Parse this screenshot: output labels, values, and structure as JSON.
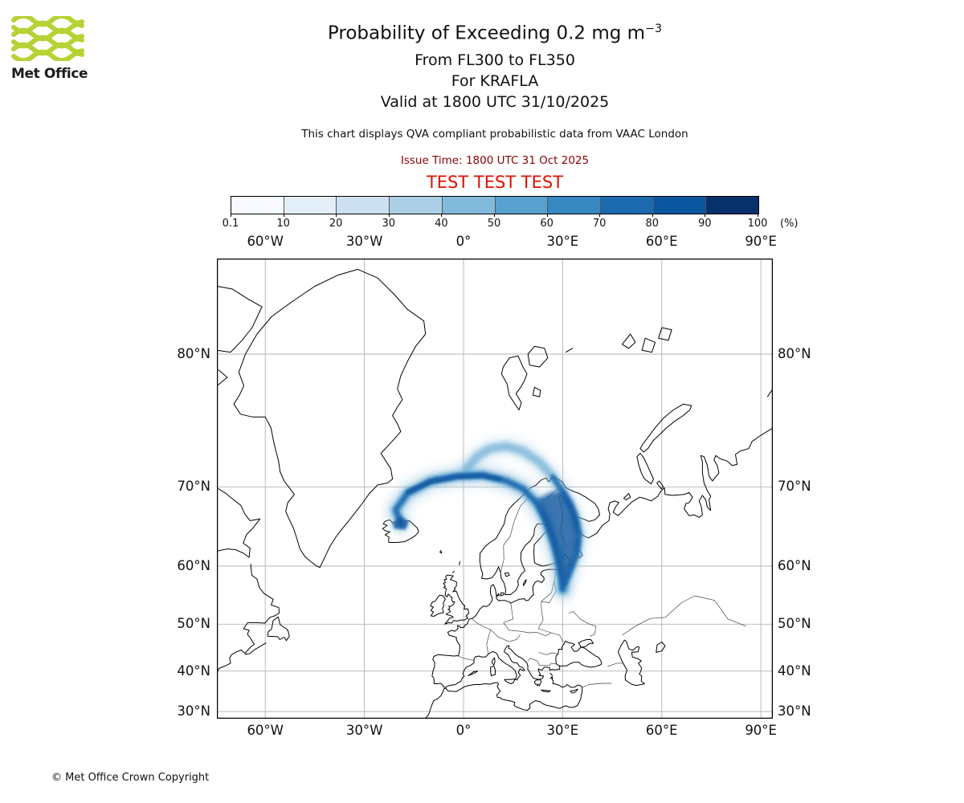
{
  "header": {
    "logo_text": "Met Office",
    "logo_green": "#b5d334",
    "title_main": "Probability of Exceeding 0.2 mg m",
    "title_sup": "−3",
    "subtitle_fl": "From FL300 to FL350",
    "subtitle_volcano": "For KRAFLA",
    "subtitle_valid": "Valid at 1800 UTC 31/10/2025",
    "description": "This chart displays QVA compliant probabilistic data from VAAC London",
    "issue_time": "Issue Time: 1800 UTC 31 Oct 2025",
    "issue_color": "#8b0000",
    "test_banner": "TEST TEST TEST",
    "test_color": "#dd1100"
  },
  "colorbar": {
    "tick_labels": [
      "0.1",
      "10",
      "20",
      "30",
      "40",
      "50",
      "60",
      "70",
      "80",
      "90",
      "100"
    ],
    "unit": "(%)",
    "colors": [
      "#f7fbff",
      "#e2eef8",
      "#cde0f1",
      "#abd0e6",
      "#82badb",
      "#58a1cf",
      "#3787c0",
      "#1b69af",
      "#0b559f",
      "#08306b"
    ]
  },
  "map": {
    "lon_ticks": [
      {
        "deg": -60,
        "label": "60°W"
      },
      {
        "deg": -30,
        "label": "30°W"
      },
      {
        "deg": 0,
        "label": "0°"
      },
      {
        "deg": 30,
        "label": "30°E"
      },
      {
        "deg": 60,
        "label": "60°E"
      },
      {
        "deg": 90,
        "label": "90°E"
      }
    ],
    "lat_ticks": [
      {
        "deg": 80,
        "label": "80°N"
      },
      {
        "deg": 70,
        "label": "70°N"
      },
      {
        "deg": 60,
        "label": "60°N"
      },
      {
        "deg": 50,
        "label": "50°N"
      },
      {
        "deg": 40,
        "label": "40°N"
      },
      {
        "deg": 30,
        "label": "30°N"
      }
    ]
  },
  "footer": {
    "copyright": "© Met Office Crown Copyright"
  },
  "chart_data": {
    "type": "map",
    "subtype": "probability_exceedance_contours",
    "quantity": "Probability of exceeding 0.2 mg m−3 volcanic ash, FL300–FL350, volcano KRAFLA, valid 1800 UTC 31/10/2025",
    "projection": "mercator",
    "lon_range": [
      -74.6,
      93.6
    ],
    "lat_range": [
      28.0,
      84.0
    ],
    "gridline_lons": [
      -60,
      -30,
      0,
      30,
      60,
      90
    ],
    "gridline_lats": [
      30,
      40,
      50,
      60,
      70,
      80
    ],
    "thresholds_pct": [
      0.1,
      10,
      20,
      30,
      40,
      50,
      60,
      70,
      80,
      90,
      100
    ],
    "legend_position": "top",
    "plume_layers": [
      {
        "type": "stroke",
        "color": 3,
        "width": 26,
        "opacity": 0.5,
        "blur": "soft",
        "pts": [
          [
            -19,
            65.8
          ],
          [
            -20.5,
            67.5
          ],
          [
            -17,
            69.3
          ],
          [
            -10,
            70.6
          ],
          [
            -2,
            71.1
          ],
          [
            6,
            71.2
          ],
          [
            13,
            70.6
          ],
          [
            18,
            69.8
          ],
          [
            22,
            68.3
          ],
          [
            25,
            66.2
          ],
          [
            27,
            63.8
          ],
          [
            28.6,
            61
          ],
          [
            29.6,
            58.3
          ],
          [
            30,
            56.3
          ]
        ]
      },
      {
        "type": "stroke",
        "color": 3,
        "width": 20,
        "opacity": 0.45,
        "blur": "soft",
        "pts": [
          [
            1,
            71.8
          ],
          [
            4,
            72.9
          ],
          [
            8,
            73.6
          ],
          [
            13,
            73.8
          ],
          [
            18,
            73.4
          ],
          [
            23,
            72.4
          ],
          [
            27,
            71
          ],
          [
            30.5,
            69.3
          ],
          [
            33.5,
            67
          ],
          [
            35,
            64.5
          ],
          [
            34.3,
            61.8
          ],
          [
            32.3,
            59.3
          ],
          [
            30.6,
            57
          ],
          [
            30.2,
            56.2
          ]
        ]
      },
      {
        "type": "stroke",
        "color": 5,
        "width": 13,
        "opacity": 0.75,
        "blur": "mid",
        "pts": [
          [
            -19,
            65.8
          ],
          [
            -20.5,
            67.5
          ],
          [
            -17,
            69.3
          ],
          [
            -10,
            70.6
          ],
          [
            -2,
            71.1
          ],
          [
            6,
            71.2
          ],
          [
            13,
            70.6
          ],
          [
            18,
            69.8
          ],
          [
            22,
            68.3
          ],
          [
            25,
            66.2
          ],
          [
            27,
            63.8
          ],
          [
            28.6,
            61
          ],
          [
            29.6,
            58.3
          ],
          [
            30,
            56.3
          ]
        ]
      },
      {
        "type": "stroke",
        "color": 5,
        "width": 11,
        "opacity": 0.6,
        "blur": "mid",
        "pts": [
          [
            1,
            71.8
          ],
          [
            4,
            72.9
          ],
          [
            8,
            73.6
          ],
          [
            13,
            73.8
          ],
          [
            18,
            73.4
          ],
          [
            23,
            72.4
          ],
          [
            27,
            71
          ],
          [
            30.5,
            69.3
          ],
          [
            33.5,
            67
          ],
          [
            35,
            64.5
          ],
          [
            34.3,
            61.8
          ],
          [
            32.3,
            59.3
          ],
          [
            30.6,
            57
          ],
          [
            30.2,
            56.2
          ]
        ]
      },
      {
        "type": "stroke",
        "color": 7,
        "width": 7,
        "opacity": 0.85,
        "blur": "fine",
        "pts": [
          [
            -19,
            65.8
          ],
          [
            -20.5,
            67.5
          ],
          [
            -17,
            69.3
          ],
          [
            -10,
            70.6
          ],
          [
            -2,
            71.1
          ],
          [
            6,
            71.2
          ],
          [
            13,
            70.6
          ],
          [
            18,
            69.8
          ],
          [
            22,
            68.3
          ],
          [
            25,
            66.2
          ],
          [
            27,
            63.8
          ],
          [
            28.6,
            61
          ],
          [
            29.6,
            58.3
          ],
          [
            30,
            56.3
          ]
        ]
      },
      {
        "type": "stroke",
        "color": 7,
        "width": 7,
        "opacity": 0.8,
        "blur": "fine",
        "pts": [
          [
            27,
            71
          ],
          [
            30.5,
            69.3
          ],
          [
            33.5,
            67
          ],
          [
            35,
            64.5
          ],
          [
            34.3,
            61.8
          ],
          [
            32.3,
            59.3
          ],
          [
            30.6,
            57.2
          ]
        ]
      },
      {
        "type": "fill",
        "color": 8,
        "opacity": 0.8,
        "blur": "mid",
        "pts": [
          [
            22,
            68.6
          ],
          [
            26,
            69.4
          ],
          [
            30,
            69.6
          ],
          [
            33,
            68.4
          ],
          [
            35,
            66
          ],
          [
            35,
            63
          ],
          [
            33,
            60
          ],
          [
            30.8,
            57.2
          ],
          [
            30,
            56.2
          ],
          [
            29.2,
            58.6
          ],
          [
            27.6,
            62
          ],
          [
            25.2,
            65
          ],
          [
            22,
            68.6
          ]
        ]
      },
      {
        "type": "stroke",
        "color": 8,
        "width": 5,
        "opacity": 0.85,
        "blur": "fine",
        "pts": [
          [
            -17,
            69.5
          ],
          [
            -10,
            70.5
          ],
          [
            -2,
            71
          ],
          [
            5,
            71.1
          ],
          [
            11,
            70.8
          ]
        ]
      },
      {
        "type": "fill",
        "color": 8,
        "opacity": 0.8,
        "blur": "fine",
        "pts": [
          [
            -21,
            65.2
          ],
          [
            -17.5,
            65.1
          ],
          [
            -16.5,
            66.1
          ],
          [
            -19,
            66.7
          ],
          [
            -21.5,
            65.9
          ],
          [
            -21,
            65.2
          ]
        ]
      }
    ]
  }
}
